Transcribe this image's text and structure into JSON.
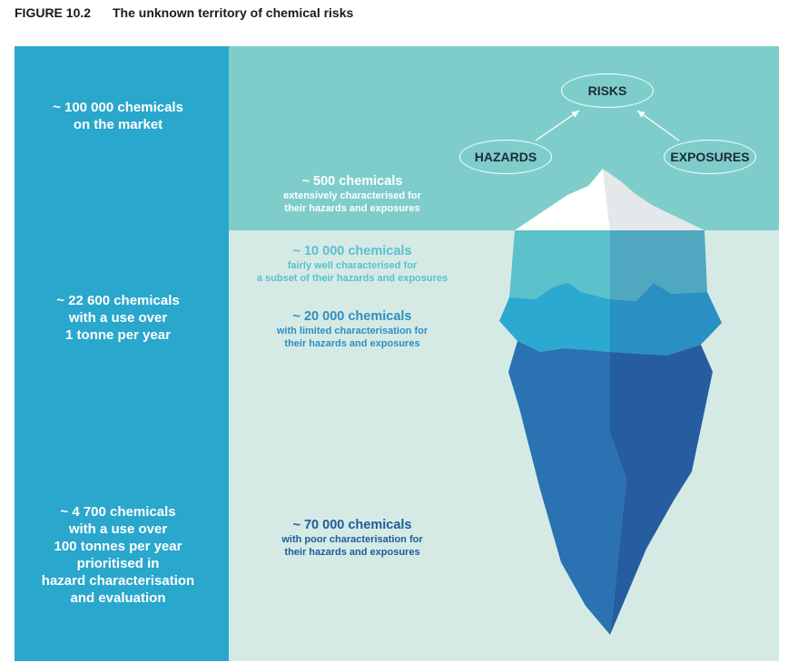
{
  "figure": {
    "number": "FIGURE 10.2",
    "title": "The unknown territory of chemical risks"
  },
  "left_panel": [
    {
      "lines": [
        "~ 100 000 chemicals",
        "on the market"
      ]
    },
    {
      "lines": [
        "~ 22 600 chemicals",
        "with a use over",
        "1 tonne per year"
      ]
    },
    {
      "lines": [
        "~ 4 700 chemicals",
        "with a use over",
        "100 tonnes per year",
        "prioritised in",
        "hazard characterisation",
        "and evaluation"
      ]
    }
  ],
  "tiers": [
    {
      "title": "~ 500 chemicals",
      "sub": [
        "extensively characterised for",
        "their hazards and exposures"
      ]
    },
    {
      "title": "~ 10 000 chemicals",
      "sub": [
        "fairly well characterised for",
        "a subset of their hazards and exposures"
      ]
    },
    {
      "title": "~ 20 000 chemicals",
      "sub": [
        "with limited characterisation for",
        "their hazards and exposures"
      ]
    },
    {
      "title": "~ 70 000 chemicals",
      "sub": [
        "with poor characterisation for",
        "their hazards and exposures"
      ]
    }
  ],
  "nodes": {
    "risks": "RISKS",
    "hazards": "HAZARDS",
    "exposures": "EXPOSURES"
  },
  "colors": {
    "left_panel": "#2aa7cc",
    "sky": "#7ecdcb",
    "sea": "#d5eae5",
    "tier1_text": "#ffffff",
    "tier2_text": "#5bbfcf",
    "tier3_text": "#2e8fc2",
    "tier4_text": "#1d5c9a"
  }
}
